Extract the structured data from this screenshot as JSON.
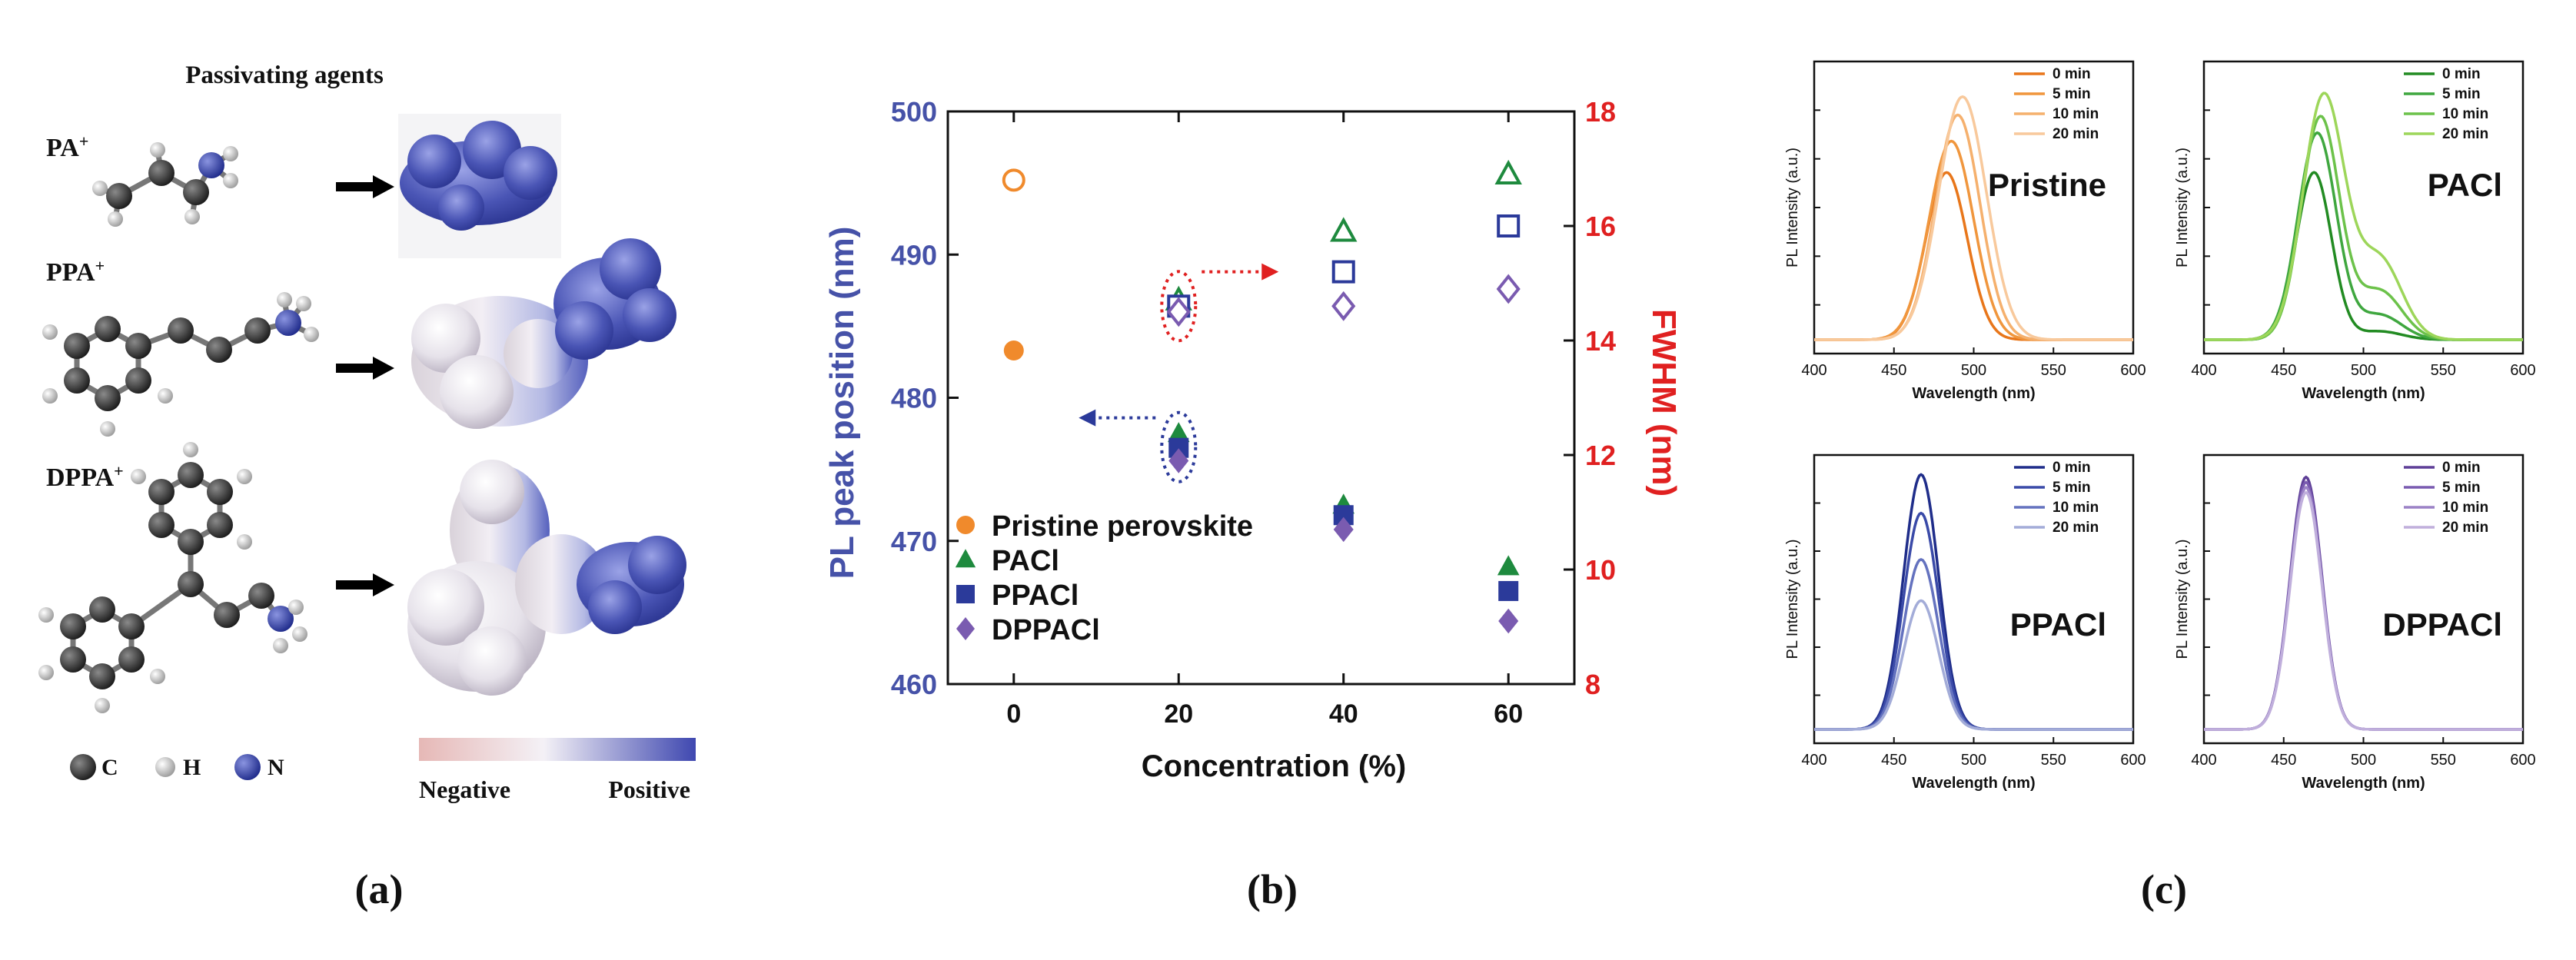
{
  "panel_a": {
    "title": "Passivating agents",
    "molecules": [
      {
        "name": "PA",
        "charge": "+"
      },
      {
        "name": "PPA",
        "charge": "+"
      },
      {
        "name": "DPPA",
        "charge": "+"
      }
    ],
    "atom_legend": [
      {
        "symbol": "C",
        "color": "#3a3a3a"
      },
      {
        "symbol": "H",
        "color": "#c8c8c8"
      },
      {
        "symbol": "N",
        "color": "#3c48a8"
      }
    ],
    "colorbar": {
      "negative": "Negative",
      "positive": "Positive"
    },
    "caption": "(a)"
  },
  "chart_data": [
    {
      "id": "b",
      "type": "scatter",
      "caption": "(b)",
      "xlabel": "Concentration (%)",
      "ylabel": "PL peak position (nm)",
      "y2label": "FWHM (nm)",
      "xlim": [
        -8,
        68
      ],
      "ylim": [
        460,
        500
      ],
      "y2lim": [
        8,
        18
      ],
      "xticks": [
        0,
        20,
        40,
        60
      ],
      "yticks": [
        460,
        470,
        480,
        490,
        500
      ],
      "y2ticks": [
        8,
        10,
        12,
        14,
        16,
        18
      ],
      "series": [
        {
          "name": "Pristine perovskite",
          "color": "#f08a2c",
          "marker": "circle",
          "peak": [
            {
              "x": 0,
              "y": 483.3
            }
          ],
          "fwhm": [
            {
              "x": 0,
              "y": 16.8
            }
          ]
        },
        {
          "name": "PACl",
          "color": "#1e8a3e",
          "marker": "triangle",
          "peak": [
            {
              "x": 20,
              "y": 477.5
            },
            {
              "x": 40,
              "y": 472.5
            },
            {
              "x": 60,
              "y": 468.2
            }
          ],
          "fwhm": [
            {
              "x": 20,
              "y": 14.7
            },
            {
              "x": 40,
              "y": 15.9
            },
            {
              "x": 60,
              "y": 16.9
            }
          ]
        },
        {
          "name": "PPACl",
          "color": "#2b3a9a",
          "marker": "square",
          "peak": [
            {
              "x": 20,
              "y": 476.5
            },
            {
              "x": 40,
              "y": 471.8
            },
            {
              "x": 60,
              "y": 466.5
            }
          ],
          "fwhm": [
            {
              "x": 20,
              "y": 14.6
            },
            {
              "x": 40,
              "y": 15.2
            },
            {
              "x": 60,
              "y": 16.0
            }
          ]
        },
        {
          "name": "DPPACl",
          "color": "#7a5bb0",
          "marker": "diamond",
          "peak": [
            {
              "x": 20,
              "y": 475.6
            },
            {
              "x": 40,
              "y": 470.8
            },
            {
              "x": 60,
              "y": 464.4
            }
          ],
          "fwhm": [
            {
              "x": 20,
              "y": 14.5
            },
            {
              "x": 40,
              "y": 14.6
            },
            {
              "x": 60,
              "y": 14.9
            }
          ]
        }
      ]
    },
    {
      "id": "c1",
      "type": "line",
      "panel_label": "Pristine",
      "color": "#f08a2c",
      "xlabel": "Wavelength (nm)",
      "ylabel": "PL Intensity (a.u.)",
      "xlim": [
        400,
        600
      ],
      "ylim": [
        0,
        1.0
      ],
      "xticks": [
        400,
        450,
        500,
        550,
        600
      ],
      "series": [
        {
          "name": "0 min",
          "color": "#e8761a",
          "peak_nm": 483,
          "peak": 0.64,
          "width_nm": 13,
          "shoulder": 0
        },
        {
          "name": "5 min",
          "color": "#f0963d",
          "peak_nm": 486,
          "peak": 0.76,
          "width_nm": 14,
          "shoulder": 0
        },
        {
          "name": "10 min",
          "color": "#f5b06d",
          "peak_nm": 490,
          "peak": 0.86,
          "width_nm": 14,
          "shoulder": 0
        },
        {
          "name": "20 min",
          "color": "#f8c99c",
          "peak_nm": 493,
          "peak": 0.93,
          "width_nm": 15,
          "shoulder": 0
        }
      ]
    },
    {
      "id": "c2",
      "type": "line",
      "panel_label": "PACl",
      "color": "#3aa83a",
      "xlabel": "Wavelength (nm)",
      "ylabel": "PL Intensity (a.u.)",
      "xlim": [
        400,
        600
      ],
      "ylim": [
        0,
        1.0
      ],
      "xticks": [
        400,
        450,
        500,
        550,
        600
      ],
      "series": [
        {
          "name": "0 min",
          "color": "#228b22",
          "peak_nm": 469,
          "peak": 0.64,
          "width_nm": 11,
          "shoulder": 0.05
        },
        {
          "name": "5 min",
          "color": "#3fa73f",
          "peak_nm": 471,
          "peak": 0.79,
          "width_nm": 12,
          "shoulder": 0.12
        },
        {
          "name": "10 min",
          "color": "#6cc24a",
          "peak_nm": 473,
          "peak": 0.85,
          "width_nm": 12,
          "shoulder": 0.22
        },
        {
          "name": "20 min",
          "color": "#9dd65a",
          "peak_nm": 475,
          "peak": 0.93,
          "width_nm": 13,
          "shoulder": 0.33
        }
      ]
    },
    {
      "id": "c3",
      "type": "line",
      "panel_label": "PPACl",
      "color": "#2b3a9a",
      "xlabel": "Wavelength (nm)",
      "ylabel": "PL Intensity (a.u.)",
      "xlim": [
        400,
        600
      ],
      "ylim": [
        0,
        1.0
      ],
      "xticks": [
        400,
        450,
        500,
        550,
        600
      ],
      "series": [
        {
          "name": "0 min",
          "color": "#1f2d8a",
          "peak_nm": 467,
          "peak": 0.99,
          "width_nm": 11,
          "shoulder": 0
        },
        {
          "name": "5 min",
          "color": "#3a4aa8",
          "peak_nm": 467,
          "peak": 0.84,
          "width_nm": 11,
          "shoulder": 0
        },
        {
          "name": "10 min",
          "color": "#6472bf",
          "peak_nm": 467,
          "peak": 0.66,
          "width_nm": 11,
          "shoulder": 0
        },
        {
          "name": "20 min",
          "color": "#a3acd8",
          "peak_nm": 467,
          "peak": 0.5,
          "width_nm": 11,
          "shoulder": 0
        }
      ]
    },
    {
      "id": "c4",
      "type": "line",
      "panel_label": "DPPACl",
      "color": "#7a5bb0",
      "xlabel": "Wavelength (nm)",
      "ylabel": "PL Intensity (a.u.)",
      "xlim": [
        400,
        600
      ],
      "ylim": [
        0,
        1.0
      ],
      "xticks": [
        400,
        450,
        500,
        550,
        600
      ],
      "series": [
        {
          "name": "0 min",
          "color": "#5e3f97",
          "peak_nm": 464,
          "peak": 0.98,
          "width_nm": 10,
          "shoulder": 0
        },
        {
          "name": "5 min",
          "color": "#7a5bb0",
          "peak_nm": 464,
          "peak": 0.96,
          "width_nm": 10,
          "shoulder": 0
        },
        {
          "name": "10 min",
          "color": "#9b82c6",
          "peak_nm": 464,
          "peak": 0.94,
          "width_nm": 10,
          "shoulder": 0
        },
        {
          "name": "20 min",
          "color": "#c0afdc",
          "peak_nm": 464,
          "peak": 0.92,
          "width_nm": 10,
          "shoulder": 0
        }
      ]
    }
  ],
  "panel_c": {
    "caption": "(c)"
  }
}
